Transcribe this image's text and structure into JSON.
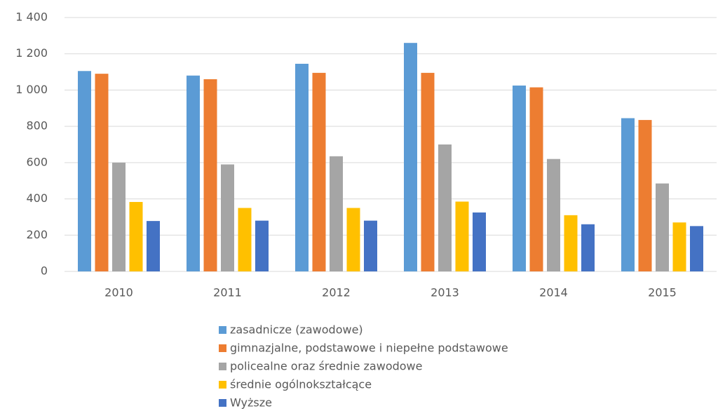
{
  "chart_data": {
    "type": "bar",
    "categories": [
      "2010",
      "2011",
      "2012",
      "2013",
      "2014",
      "2015"
    ],
    "series": [
      {
        "name": "zasadnicze (zawodowe)",
        "color": "#5b9bd5",
        "values": [
          1105,
          1080,
          1145,
          1260,
          1025,
          845
        ]
      },
      {
        "name": "gimnazjalne, podstawowe i niepełne podstawowe",
        "color": "#ed7d31",
        "values": [
          1090,
          1060,
          1095,
          1095,
          1015,
          835
        ]
      },
      {
        "name": "policealne oraz średnie zawodowe",
        "color": "#a5a5a5",
        "values": [
          600,
          590,
          635,
          700,
          620,
          485
        ]
      },
      {
        "name": "średnie ogólnokształcące",
        "color": "#ffc000",
        "values": [
          383,
          350,
          350,
          385,
          310,
          270
        ]
      },
      {
        "name": "Wyższe",
        "color": "#4472c4",
        "values": [
          278,
          280,
          280,
          325,
          260,
          250
        ]
      }
    ],
    "ylim": [
      0,
      1400
    ],
    "yticks": [
      0,
      200,
      400,
      600,
      800,
      {
        "value": 1000,
        "label": "1 000"
      },
      {
        "value": 1200,
        "label": "1 200"
      },
      {
        "value": 1400,
        "label": "1 400"
      }
    ],
    "grid": true,
    "legend": "bottom"
  }
}
